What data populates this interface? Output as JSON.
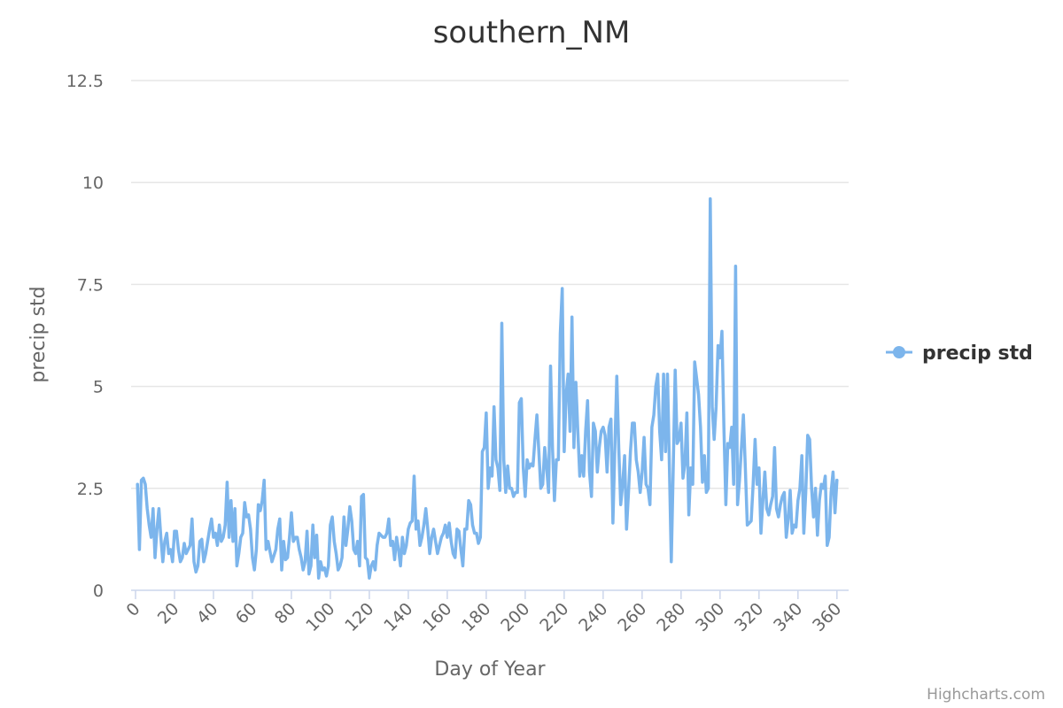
{
  "chart_data": {
    "type": "line",
    "title": "southern_NM",
    "xlabel": "Day of Year",
    "ylabel": "precip std",
    "xlim": [
      0,
      366
    ],
    "ylim": [
      0,
      12.5
    ],
    "x_ticks": [
      "0",
      "20",
      "40",
      "60",
      "80",
      "100",
      "120",
      "140",
      "160",
      "180",
      "200",
      "220",
      "240",
      "260",
      "280",
      "300",
      "320",
      "340",
      "360"
    ],
    "y_ticks": [
      "0",
      "2.5",
      "5",
      "7.5",
      "10",
      "12.5"
    ],
    "grid": true,
    "legend_position": "right",
    "series": [
      {
        "name": "precip std",
        "color": "#7cb5ec",
        "x_start": 1,
        "values": [
          2.6,
          1.0,
          2.7,
          2.75,
          2.6,
          2.0,
          1.6,
          1.3,
          2.0,
          0.8,
          1.5,
          2.0,
          1.3,
          0.7,
          1.2,
          1.4,
          0.9,
          1.0,
          0.7,
          1.45,
          1.45,
          1.0,
          0.7,
          0.8,
          1.15,
          0.9,
          1.0,
          1.1,
          1.75,
          0.7,
          0.45,
          0.6,
          1.2,
          1.25,
          0.7,
          0.9,
          1.2,
          1.5,
          1.75,
          1.3,
          1.4,
          1.1,
          1.6,
          1.2,
          1.3,
          1.6,
          2.65,
          1.3,
          2.2,
          1.2,
          2.0,
          0.6,
          0.9,
          1.3,
          1.4,
          2.15,
          1.8,
          1.85,
          1.5,
          0.8,
          0.5,
          1.0,
          2.1,
          1.95,
          2.2,
          2.7,
          1.0,
          1.2,
          0.95,
          0.7,
          0.85,
          1.0,
          1.5,
          1.75,
          0.5,
          1.2,
          0.75,
          0.8,
          1.3,
          1.9,
          1.2,
          1.3,
          1.3,
          1.0,
          0.8,
          0.5,
          0.7,
          1.45,
          0.4,
          0.6,
          1.6,
          0.8,
          1.35,
          0.3,
          0.7,
          0.5,
          0.55,
          0.35,
          0.6,
          1.6,
          1.8,
          1.2,
          0.9,
          0.5,
          0.6,
          0.8,
          1.8,
          1.1,
          1.5,
          2.05,
          1.7,
          1.0,
          0.9,
          1.2,
          0.6,
          2.3,
          2.35,
          0.8,
          0.75,
          0.3,
          0.6,
          0.7,
          0.5,
          1.1,
          1.4,
          1.35,
          1.3,
          1.3,
          1.4,
          1.75,
          1.1,
          1.2,
          0.75,
          1.3,
          1.0,
          0.6,
          1.3,
          0.9,
          1.1,
          1.5,
          1.65,
          1.7,
          2.8,
          1.5,
          1.7,
          1.1,
          1.3,
          1.6,
          2.0,
          1.5,
          0.9,
          1.3,
          1.5,
          1.2,
          0.9,
          1.1,
          1.3,
          1.4,
          1.6,
          1.3,
          1.65,
          1.2,
          0.9,
          0.8,
          1.5,
          1.45,
          1.0,
          0.6,
          1.5,
          1.5,
          2.2,
          2.1,
          1.6,
          1.4,
          1.4,
          1.15,
          1.3,
          3.4,
          3.5,
          4.35,
          2.5,
          3.0,
          2.8,
          4.5,
          3.2,
          3.0,
          2.45,
          6.55,
          3.2,
          2.4,
          3.05,
          2.5,
          2.5,
          2.3,
          2.4,
          2.4,
          4.6,
          4.7,
          3.0,
          2.3,
          3.2,
          3.0,
          3.1,
          3.05,
          3.7,
          4.3,
          3.4,
          2.5,
          2.6,
          3.5,
          3.0,
          2.4,
          5.5,
          3.5,
          2.2,
          3.2,
          3.2,
          6.3,
          7.4,
          3.4,
          4.8,
          5.3,
          3.9,
          6.7,
          3.5,
          5.1,
          3.9,
          2.8,
          3.3,
          2.8,
          3.9,
          4.65,
          2.9,
          2.3,
          4.1,
          3.9,
          2.9,
          3.5,
          3.9,
          4.0,
          3.8,
          2.9,
          4.0,
          4.2,
          1.65,
          3.5,
          5.25,
          3.5,
          2.1,
          2.6,
          3.3,
          1.5,
          2.4,
          3.4,
          4.1,
          4.1,
          3.2,
          2.9,
          2.4,
          2.9,
          3.75,
          2.6,
          2.5,
          2.1,
          4.0,
          4.3,
          5.0,
          5.3,
          3.9,
          3.2,
          5.3,
          3.4,
          5.3,
          3.0,
          0.7,
          3.0,
          5.4,
          3.6,
          3.7,
          4.1,
          2.75,
          3.1,
          4.35,
          1.85,
          3.0,
          2.6,
          5.6,
          5.2,
          4.8,
          4.0,
          2.65,
          3.3,
          2.4,
          2.5,
          9.6,
          4.5,
          3.7,
          4.5,
          6.0,
          5.7,
          6.35,
          4.0,
          2.1,
          3.6,
          3.5,
          4.0,
          2.6,
          7.95,
          2.1,
          2.7,
          3.5,
          4.3,
          3.0,
          1.6,
          1.65,
          1.7,
          2.6,
          3.7,
          2.6,
          3.0,
          1.4,
          2.2,
          2.9,
          2.0,
          1.85,
          2.1,
          2.3,
          3.5,
          2.0,
          1.8,
          2.1,
          2.3,
          2.4,
          1.3,
          1.75,
          2.45,
          1.4,
          1.6,
          1.55,
          2.2,
          2.5,
          3.3,
          1.4,
          2.4,
          3.8,
          3.7,
          2.5,
          1.8,
          2.5,
          1.35,
          2.2,
          2.6,
          2.5,
          2.8,
          1.1,
          1.3,
          2.4,
          2.9,
          1.9,
          2.7
        ]
      }
    ]
  },
  "credit": "Highcharts.com"
}
